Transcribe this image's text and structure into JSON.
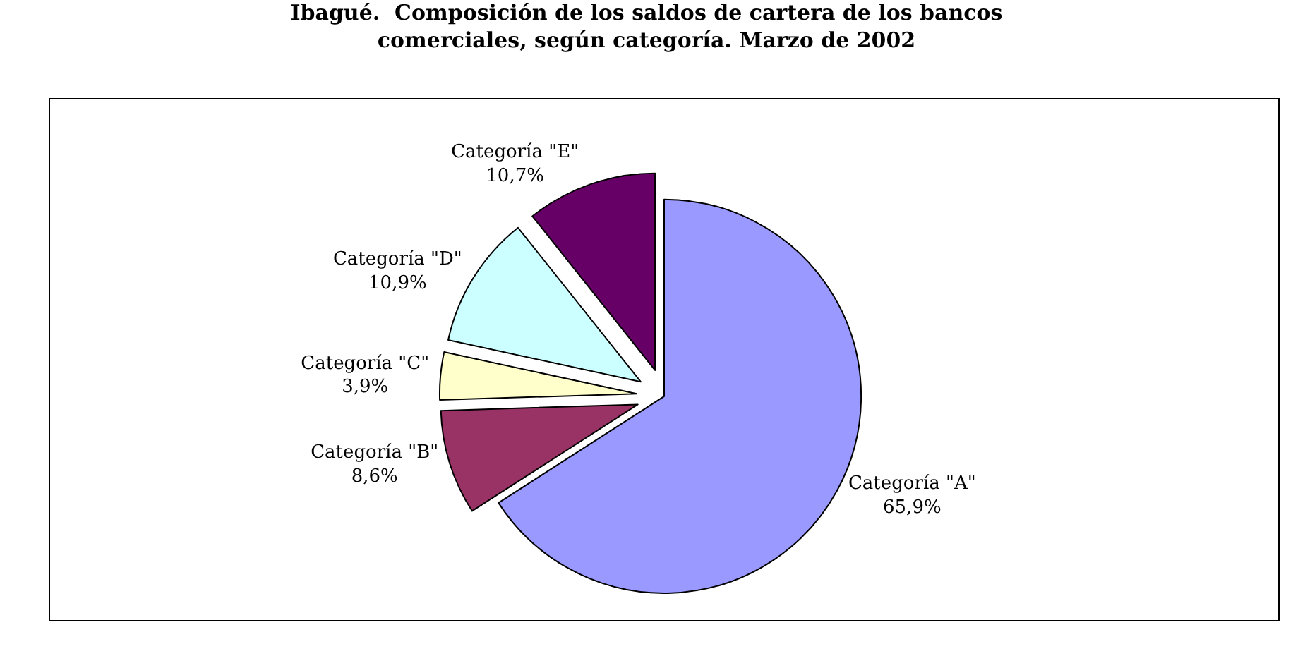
{
  "chart_data": {
    "type": "pie",
    "title": "Ibagué.  Composición de los saldos de cartera de los bancos comerciales, según categoría. Marzo de 2002",
    "categories": [
      "Categoría \"A\"",
      "Categoría \"B\"",
      "Categoría \"C\"",
      "Categoría \"D\"",
      "Categoría \"E\""
    ],
    "values": [
      65.9,
      8.6,
      3.9,
      10.9,
      10.7
    ],
    "colors": [
      "#9999ff",
      "#993366",
      "#ffffcc",
      "#ccffff",
      "#660066"
    ],
    "value_labels": [
      "65,9%",
      "8,6%",
      "3,9%",
      "10,9%",
      "10,7%"
    ],
    "legend": false
  }
}
